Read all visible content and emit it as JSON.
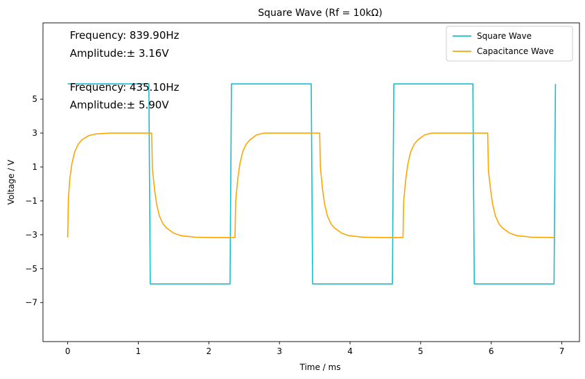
{
  "chart_data": {
    "type": "line",
    "title": "Square Wave (Rf = 10kΩ)",
    "xlabel": "Time / ms",
    "ylabel": "Voltage / V",
    "xlim": [
      -0.35,
      7.25
    ],
    "ylim": [
      -9.3,
      9.5
    ],
    "xticks": [
      0,
      1,
      2,
      3,
      4,
      5,
      6,
      7
    ],
    "yticks": [
      5,
      3,
      1,
      -1,
      -3,
      -5,
      -7
    ],
    "ytick_labels": [
      "5",
      "3",
      "1",
      "−1",
      "−3",
      "−5",
      "−7"
    ],
    "grid": false,
    "legend": "top-right",
    "annotations": [
      "Frequency: 839.90Hz",
      "Amplitude:± 3.16V",
      "Frequency: 435.10Hz",
      "Amplitude:± 5.90V"
    ],
    "series": [
      {
        "name": "Square Wave",
        "color": "#17becf",
        "x": [
          0,
          1.15,
          1.17,
          2.3,
          2.32,
          3.45,
          3.47,
          4.6,
          4.62,
          5.74,
          5.76,
          6.89,
          6.91
        ],
        "y": [
          5.9,
          5.9,
          -5.9,
          -5.9,
          5.9,
          5.9,
          -5.9,
          -5.9,
          5.9,
          5.9,
          -5.9,
          -5.9,
          5.9
        ]
      },
      {
        "name": "Capacitance Wave",
        "color": "#ffa500",
        "x": [
          0,
          0.01,
          0.03,
          0.06,
          0.1,
          0.15,
          0.2,
          0.3,
          0.4,
          0.6,
          0.9,
          1.19,
          1.2,
          1.23,
          1.26,
          1.3,
          1.35,
          1.4,
          1.5,
          1.6,
          1.8,
          2.1,
          2.37,
          2.38,
          2.41,
          2.44,
          2.48,
          2.53,
          2.58,
          2.68,
          2.78,
          2.98,
          3.28,
          3.57,
          3.58,
          3.61,
          3.64,
          3.68,
          3.73,
          3.78,
          3.88,
          3.98,
          4.18,
          4.48,
          4.75,
          4.76,
          4.79,
          4.82,
          4.86,
          4.91,
          4.96,
          5.06,
          5.16,
          5.36,
          5.66,
          5.95,
          5.96,
          5.99,
          6.02,
          6.06,
          6.11,
          6.16,
          6.26,
          6.36,
          6.56,
          6.89
        ],
        "y": [
          -3.16,
          -0.9,
          0.3,
          1.2,
          1.9,
          2.35,
          2.6,
          2.85,
          2.95,
          3.0,
          3.0,
          3.0,
          0.9,
          -0.3,
          -1.2,
          -1.9,
          -2.35,
          -2.6,
          -2.9,
          -3.05,
          -3.14,
          -3.16,
          -3.16,
          -1.0,
          0.3,
          1.2,
          1.9,
          2.35,
          2.6,
          2.9,
          3.0,
          3.0,
          3.0,
          3.0,
          1.0,
          -0.3,
          -1.2,
          -1.9,
          -2.35,
          -2.6,
          -2.9,
          -3.05,
          -3.14,
          -3.16,
          -3.16,
          -1.0,
          0.3,
          1.2,
          1.9,
          2.35,
          2.6,
          2.9,
          3.0,
          3.0,
          3.0,
          3.0,
          0.8,
          -0.3,
          -1.2,
          -1.9,
          -2.35,
          -2.6,
          -2.9,
          -3.05,
          -3.14,
          -3.16
        ]
      }
    ]
  }
}
